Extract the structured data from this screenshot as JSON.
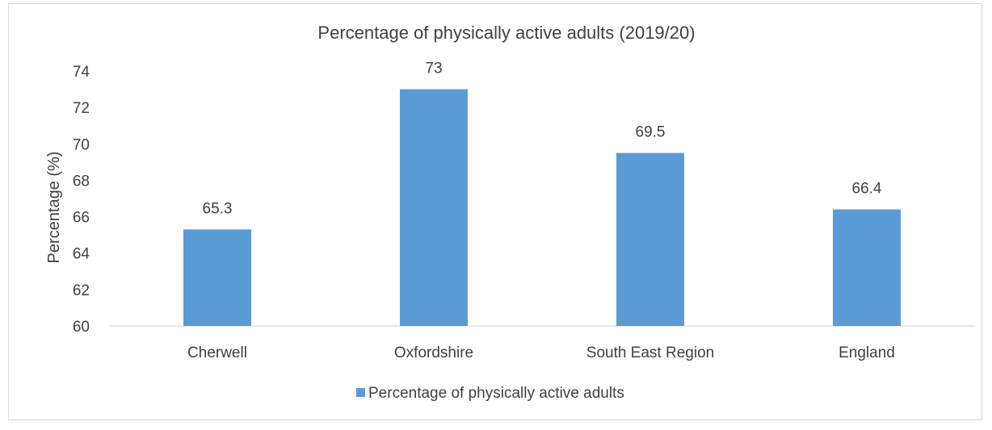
{
  "chart_data": {
    "type": "bar",
    "title": "Percentage of physically active adults (2019/20)",
    "xlabel": "",
    "ylabel": "Percentage  (%)",
    "categories": [
      "Cherwell",
      "Oxfordshire",
      "South East Region",
      "England"
    ],
    "series": [
      {
        "name": "Percentage of physically active adults",
        "values": [
          65.3,
          73,
          69.5,
          66.4
        ],
        "color": "#5b9bd5"
      }
    ],
    "data_labels": [
      "65.3",
      "73",
      "69.5",
      "66.4"
    ],
    "ylim": [
      60,
      74
    ],
    "yticks": [
      60,
      62,
      64,
      66,
      68,
      70,
      72,
      74
    ],
    "grid": false,
    "legend_position": "bottom"
  }
}
